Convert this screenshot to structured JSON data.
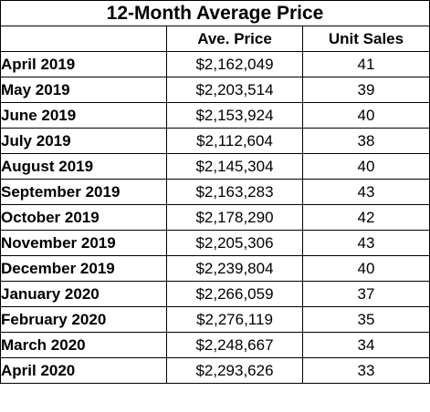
{
  "table": {
    "title": "12-Month Average Price",
    "headers": [
      "",
      "Ave. Price",
      "Unit Sales"
    ],
    "rows": [
      {
        "month": "April 2019",
        "price": "$2,162,049",
        "sales": "41"
      },
      {
        "month": "May 2019",
        "price": "$2,203,514",
        "sales": "39"
      },
      {
        "month": "June 2019",
        "price": "$2,153,924",
        "sales": "40"
      },
      {
        "month": "July 2019",
        "price": "$2,112,604",
        "sales": "38"
      },
      {
        "month": "August 2019",
        "price": "$2,145,304",
        "sales": "40"
      },
      {
        "month": "September 2019",
        "price": "$2,163,283",
        "sales": "43"
      },
      {
        "month": "October 2019",
        "price": "$2,178,290",
        "sales": "42"
      },
      {
        "month": "November 2019",
        "price": "$2,205,306",
        "sales": "43"
      },
      {
        "month": "December 2019",
        "price": "$2,239,804",
        "sales": "40"
      },
      {
        "month": "January 2020",
        "price": "$2,266,059",
        "sales": "37"
      },
      {
        "month": "February 2020",
        "price": "$2,276,119",
        "sales": "35"
      },
      {
        "month": "March 2020",
        "price": "$2,248,667",
        "sales": "34"
      },
      {
        "month": "April 2020",
        "price": "$2,293,626",
        "sales": "33"
      }
    ]
  }
}
